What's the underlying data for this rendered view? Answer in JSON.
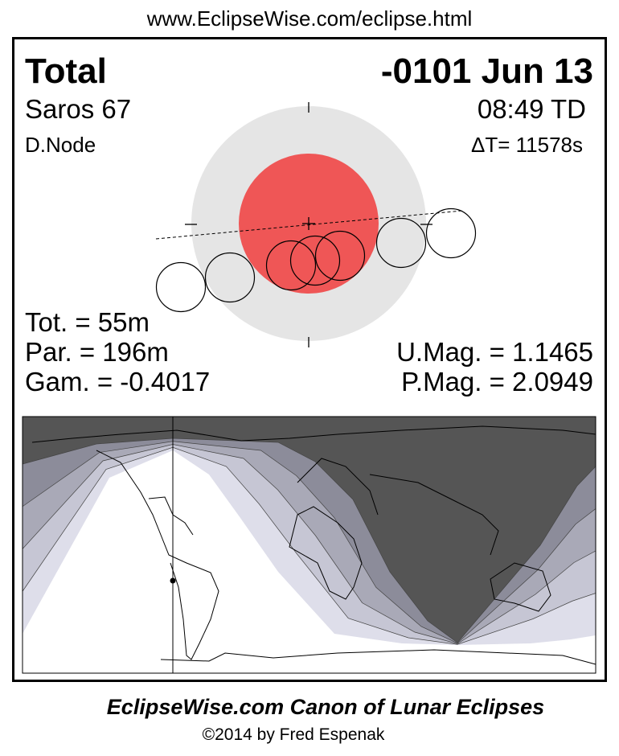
{
  "header": {
    "url": "www.EclipseWise.com/eclipse.html"
  },
  "eclipse": {
    "type": "Total",
    "date": "-0101 Jun 13",
    "saros": "Saros  67",
    "time": "08:49 TD",
    "node": "D.Node",
    "delta_t": "ΔT=  11578s",
    "totality": "Tot. =  55m",
    "partial": "Par. = 196m",
    "gamma": "Gam. = -0.4017",
    "umbral_mag": "U.Mag. = 1.1465",
    "penumbral_mag": "P.Mag. = 2.0949"
  },
  "colors": {
    "umbra": "#ef5656",
    "penumbra": "#e5e5e5",
    "night": "#555555",
    "bands": [
      "#8c8c9a",
      "#a9a9b7",
      "#c6c6d4",
      "#dedeea",
      "#ffffff"
    ]
  },
  "footer": {
    "title": "EclipseWise.com Canon of Lunar Eclipses",
    "copyright": "©2014 by Fred Espenak"
  }
}
